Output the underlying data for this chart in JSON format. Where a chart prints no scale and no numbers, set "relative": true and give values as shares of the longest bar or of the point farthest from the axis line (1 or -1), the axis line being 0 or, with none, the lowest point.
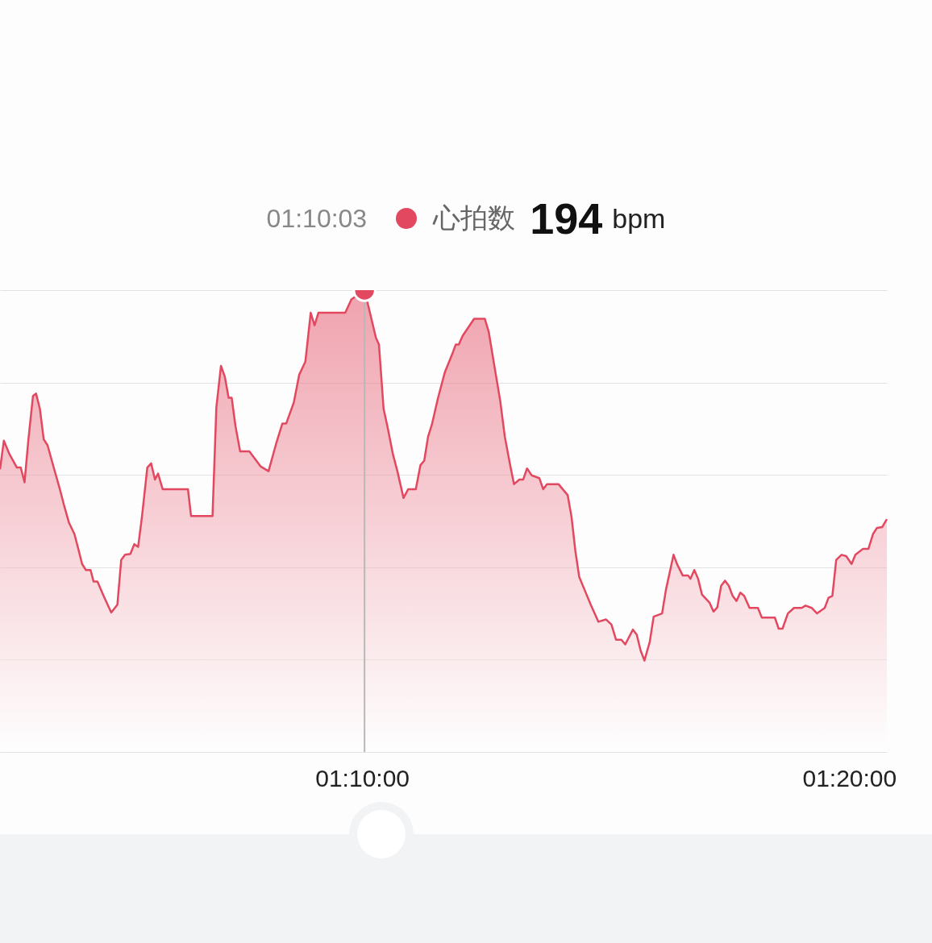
{
  "chart_data": {
    "type": "area",
    "relative": true,
    "grid": "y",
    "legend": "top",
    "annotations": [
      "01:10:03",
      "194",
      "bpm"
    ],
    "xlim": [
      1.04278,
      1.3462
    ],
    "xticks": [
      {
        "value": 1.16667,
        "label": "01:10:00"
      },
      {
        "value": 1.33333,
        "label": "01:20:00"
      }
    ],
    "ref_lines": [
      {
        "axis": "x",
        "value": 1.1675,
        "color": "#b8b8b8"
      }
    ],
    "series": [
      {
        "name": "心拍数",
        "color": "#e2485f",
        "x": [
          1.04278,
          1.0441,
          1.04593,
          1.04856,
          1.04987,
          1.05118,
          1.0525,
          1.05407,
          1.05512,
          1.05643,
          1.05774,
          1.05906,
          1.06116,
          1.06326,
          1.06457,
          1.06641,
          1.06824,
          1.06956,
          1.07087,
          1.07218,
          1.07376,
          1.07481,
          1.07612,
          1.07822,
          1.08084,
          1.08294,
          1.08425,
          1.08557,
          1.0874,
          1.08872,
          1.09003,
          1.09134,
          1.09318,
          1.09449,
          1.0958,
          1.09685,
          1.09843,
          1.10709,
          1.10814,
          1.11549,
          1.1168,
          1.11838,
          1.11969,
          1.121,
          1.12205,
          1.12336,
          1.12494,
          1.12809,
          1.13202,
          1.13465,
          1.13727,
          1.13937,
          1.14069,
          1.14331,
          1.14515,
          1.14725,
          1.14908,
          1.1504,
          1.15171,
          1.1609,
          1.163,
          1.1675,
          1.16929,
          1.17139,
          1.17244,
          1.17402,
          1.17533,
          1.17717,
          1.17874,
          1.18084,
          1.18242,
          1.18504,
          1.18662,
          1.18793,
          1.18924,
          1.19055,
          1.19265,
          1.19502,
          1.19764,
          1.19869,
          1.19974,
          1.20105,
          1.20499,
          1.20867,
          1.20998,
          1.21208,
          1.21391,
          1.21549,
          1.21733,
          1.21864,
          1.22048,
          1.22179,
          1.2231,
          1.22468,
          1.2273,
          1.22861,
          1.22992,
          1.23386,
          1.23701,
          1.23832,
          1.23964,
          1.24095,
          1.24279,
          1.24489,
          1.24751,
          1.25014,
          1.25197,
          1.25355,
          1.25538,
          1.2567,
          1.25932,
          1.26063,
          1.26195,
          1.26326,
          1.2651,
          1.26641,
          1.2693,
          1.27061,
          1.27323,
          1.27455,
          1.27638,
          1.27822,
          1.27901,
          1.28032,
          1.28163,
          1.28294,
          1.28557,
          1.28688,
          1.28819,
          1.28951,
          1.29082,
          1.29213,
          1.29344,
          1.29476,
          1.29607,
          1.29738,
          1.29922,
          1.3021,
          1.30342,
          1.30788,
          1.30919,
          1.3105,
          1.31234,
          1.31444,
          1.31707,
          1.31838,
          1.32048,
          1.32231,
          1.32494,
          1.32625,
          1.32756,
          1.32888,
          1.33071,
          1.33229,
          1.33413,
          1.33544,
          1.33806,
          1.3399,
          1.34147,
          1.34279,
          1.34462,
          1.3462
        ],
        "values": [
          0.612,
          0.674,
          0.646,
          0.616,
          0.616,
          0.584,
          0.677,
          0.771,
          0.776,
          0.743,
          0.677,
          0.664,
          0.616,
          0.569,
          0.537,
          0.496,
          0.472,
          0.44,
          0.407,
          0.394,
          0.394,
          0.369,
          0.369,
          0.338,
          0.302,
          0.319,
          0.416,
          0.427,
          0.429,
          0.45,
          0.444,
          0.509,
          0.616,
          0.625,
          0.59,
          0.603,
          0.569,
          0.569,
          0.511,
          0.511,
          0.746,
          0.836,
          0.813,
          0.767,
          0.767,
          0.705,
          0.651,
          0.651,
          0.618,
          0.608,
          0.668,
          0.711,
          0.711,
          0.757,
          0.817,
          0.845,
          0.951,
          0.924,
          0.951,
          0.951,
          0.98,
          1,
          0.953,
          0.897,
          0.882,
          0.743,
          0.705,
          0.646,
          0.608,
          0.55,
          0.569,
          0.569,
          0.621,
          0.631,
          0.683,
          0.709,
          0.767,
          0.823,
          0.864,
          0.882,
          0.882,
          0.901,
          0.938,
          0.938,
          0.91,
          0.83,
          0.761,
          0.683,
          0.621,
          0.58,
          0.59,
          0.59,
          0.614,
          0.599,
          0.593,
          0.569,
          0.58,
          0.58,
          0.556,
          0.509,
          0.435,
          0.379,
          0.351,
          0.319,
          0.282,
          0.287,
          0.276,
          0.243,
          0.243,
          0.233,
          0.265,
          0.254,
          0.22,
          0.198,
          0.239,
          0.293,
          0.3,
          0.351,
          0.427,
          0.405,
          0.382,
          0.382,
          0.375,
          0.394,
          0.375,
          0.341,
          0.323,
          0.304,
          0.313,
          0.36,
          0.371,
          0.36,
          0.338,
          0.327,
          0.345,
          0.338,
          0.312,
          0.312,
          0.291,
          0.291,
          0.267,
          0.267,
          0.3,
          0.312,
          0.312,
          0.317,
          0.312,
          0.3,
          0.312,
          0.334,
          0.338,
          0.416,
          0.427,
          0.424,
          0.407,
          0.427,
          0.44,
          0.44,
          0.472,
          0.485,
          0.487,
          0.504
        ]
      },
      {
        "type": "scatter",
        "color": "#e2485f",
        "marker": "circle",
        "x": [
          1.1675
        ],
        "values": [
          1
        ]
      }
    ]
  }
}
